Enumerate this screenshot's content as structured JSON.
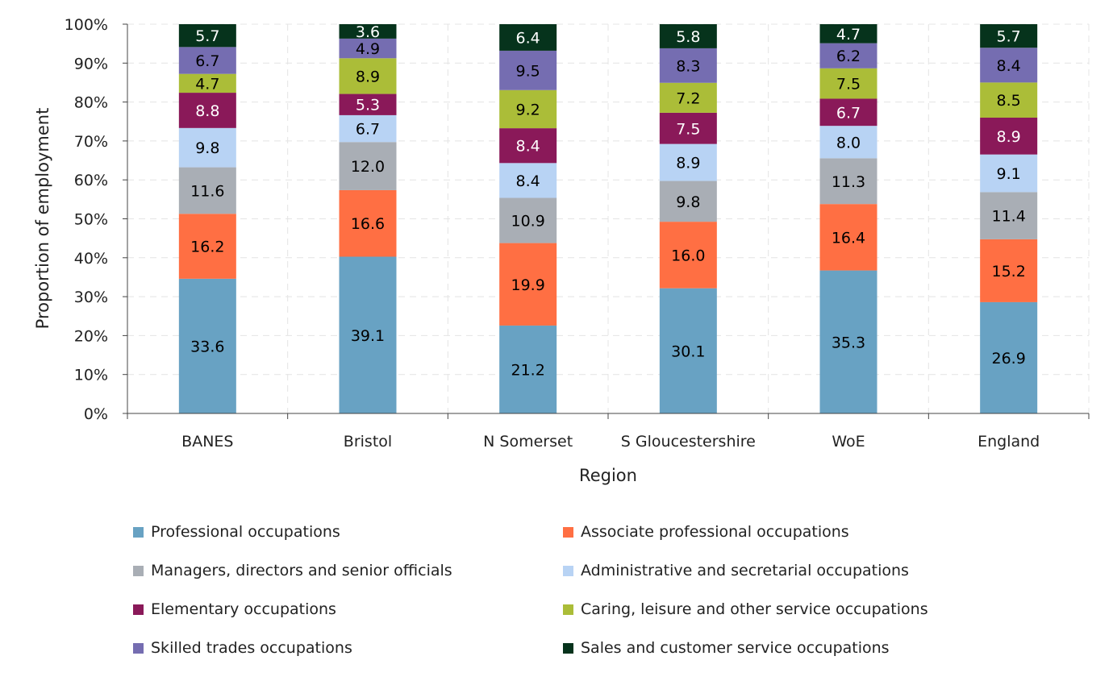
{
  "chart_data": {
    "type": "bar",
    "stacked": true,
    "normalized_percent": true,
    "title": "",
    "xlabel": "Region",
    "ylabel": "Proportion of employment",
    "ylim": [
      0,
      100
    ],
    "yticks": [
      "0%",
      "10%",
      "20%",
      "30%",
      "40%",
      "50%",
      "60%",
      "70%",
      "80%",
      "90%",
      "100%"
    ],
    "grid": true,
    "legend_position": "bottom",
    "categories": [
      "BANES",
      "Bristol",
      "N Somerset",
      "S Gloucestershire",
      "WoE",
      "England"
    ],
    "series": [
      {
        "name": "Professional occupations",
        "color": "#68a2c3",
        "label_color": "#000000",
        "values": [
          33.6,
          39.1,
          21.2,
          30.1,
          35.3,
          26.9
        ]
      },
      {
        "name": "Associate professional occupations",
        "color": "#ff6f43",
        "label_color": "#000000",
        "values": [
          16.2,
          16.6,
          19.9,
          16.0,
          16.4,
          15.2
        ]
      },
      {
        "name": "Managers, directors and senior officials",
        "color": "#a9aeb5",
        "label_color": "#000000",
        "values": [
          11.6,
          12.0,
          10.9,
          9.8,
          11.3,
          11.4
        ]
      },
      {
        "name": "Administrative and secretarial occupations",
        "color": "#b8d3f4",
        "label_color": "#000000",
        "values": [
          9.8,
          6.7,
          8.4,
          8.9,
          8.0,
          9.1
        ]
      },
      {
        "name": "Elementary occupations",
        "color": "#8a1959",
        "label_color": "#ffffff",
        "values": [
          8.8,
          5.3,
          8.4,
          7.5,
          6.7,
          8.9
        ]
      },
      {
        "name": "Caring, leisure and other service occupations",
        "color": "#abbd38",
        "label_color": "#000000",
        "values": [
          4.7,
          8.9,
          9.2,
          7.2,
          7.5,
          8.5
        ]
      },
      {
        "name": "Skilled trades occupations",
        "color": "#756db1",
        "label_color": "#000000",
        "values": [
          6.7,
          4.9,
          9.5,
          8.3,
          6.2,
          8.4
        ]
      },
      {
        "name": "Sales and customer service occupations",
        "color": "#06331c",
        "label_color": "#ffffff",
        "values": [
          5.7,
          3.6,
          6.4,
          5.8,
          4.7,
          5.7
        ]
      }
    ],
    "legend_order": [
      0,
      1,
      2,
      3,
      4,
      5,
      6,
      7
    ]
  }
}
